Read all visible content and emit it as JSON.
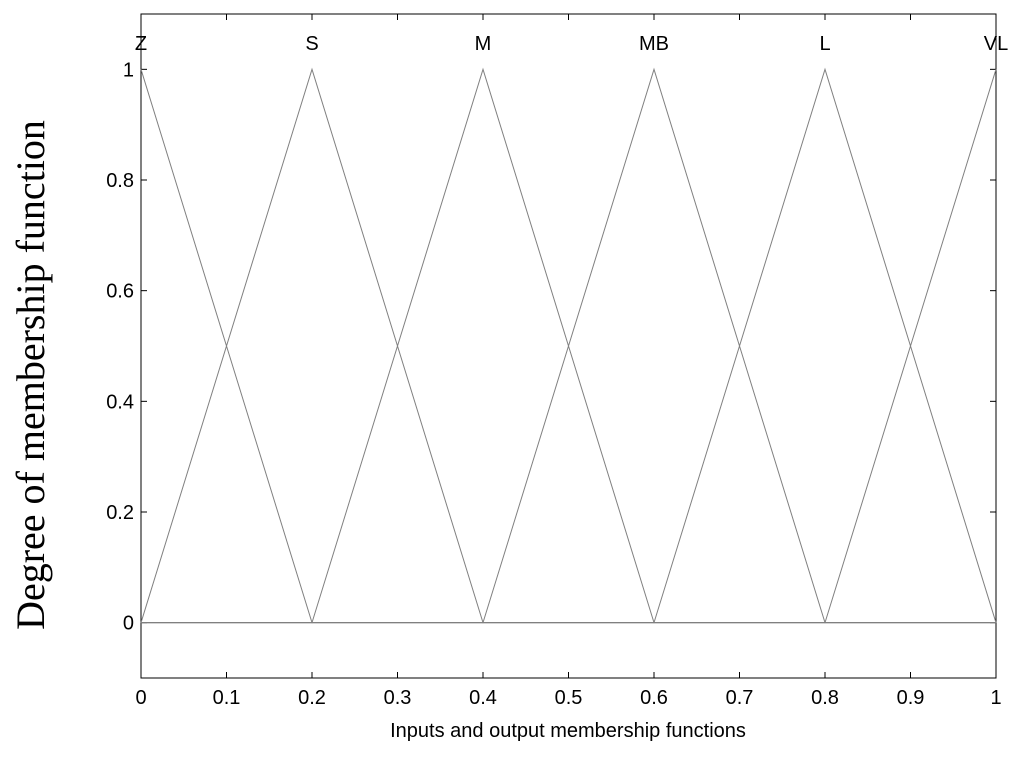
{
  "chart_data": {
    "type": "line",
    "x_label": "Inputs and output membership functions",
    "y_label": "Degree of membership function",
    "xlim": [
      0,
      1
    ],
    "ylim": [
      -0.1,
      1.1
    ],
    "xticks": [
      0,
      0.1,
      0.2,
      0.3,
      0.4,
      0.5,
      0.6,
      0.7,
      0.8,
      0.9,
      1
    ],
    "yticks": [
      0,
      0.2,
      0.4,
      0.6,
      0.8,
      1
    ],
    "series": [
      {
        "name": "Z",
        "color": "#808080",
        "x": [
          0,
          0.2,
          1
        ],
        "values": [
          1,
          0,
          0
        ]
      },
      {
        "name": "S",
        "color": "#808080",
        "x": [
          0,
          0.2,
          0.4,
          1
        ],
        "values": [
          0,
          1,
          0,
          0
        ]
      },
      {
        "name": "M",
        "color": "#808080",
        "x": [
          0,
          0.2,
          0.4,
          0.6,
          1
        ],
        "values": [
          0,
          0,
          1,
          0,
          0
        ]
      },
      {
        "name": "MB",
        "color": "#808080",
        "x": [
          0,
          0.4,
          0.6,
          0.8,
          1
        ],
        "values": [
          0,
          0,
          1,
          0,
          0
        ]
      },
      {
        "name": "L",
        "color": "#808080",
        "x": [
          0,
          0.6,
          0.8,
          1
        ],
        "values": [
          0,
          0,
          1,
          0
        ]
      },
      {
        "name": "VL",
        "color": "#808080",
        "x": [
          0,
          0.8,
          1
        ],
        "values": [
          0,
          0,
          1
        ]
      }
    ]
  }
}
